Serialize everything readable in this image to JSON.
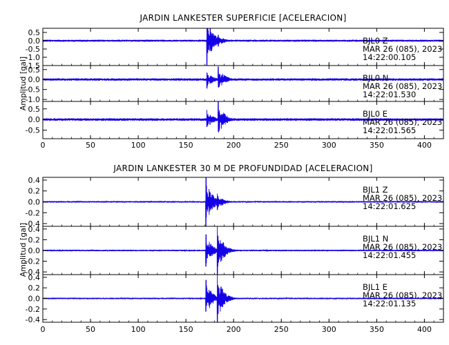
{
  "colors": {
    "trace": "#1400e6",
    "axis": "#000000",
    "background": "#ffffff"
  },
  "chart_data": [
    {
      "type": "line",
      "title": "JARDIN LANKESTER SUPERFICIE [ACELERACION]",
      "ylabel": "Amplitud [gal]",
      "xlabel": "",
      "xlim": [
        0,
        420
      ],
      "x_ticks": [
        0,
        50,
        100,
        150,
        200,
        250,
        300,
        350,
        400
      ],
      "grid": false,
      "series": [
        {
          "name": "BJL0  Z",
          "date": "MAR 26 (085), 2023",
          "time": "14:22:00.105",
          "ylim": [
            -1.5,
            0.75
          ],
          "y_ticks": [
            0.5,
            0.0,
            -0.5,
            -1.0,
            -1.5
          ],
          "y_tick_labels": [
            "0.5",
            "0.0",
            "-0.5",
            "-1.0",
            "-1.5"
          ],
          "onsets": [
            {
              "t": 172,
              "peak": 0.75,
              "trough": -1.5
            },
            {
              "t": 184,
              "peak": 0.35,
              "trough": -0.35
            }
          ],
          "noise": 0.05
        },
        {
          "name": "BJL0  N",
          "date": "MAR 26 (085), 2023",
          "time": "14:22:01.530",
          "ylim": [
            -1.1,
            0.7
          ],
          "y_ticks": [
            0.5,
            0.0,
            -0.5,
            -1.0
          ],
          "y_tick_labels": [
            "0.5",
            "0.0",
            "-0.5",
            "-1.0"
          ],
          "onsets": [
            {
              "t": 172,
              "peak": 0.35,
              "trough": -0.45
            },
            {
              "t": 184,
              "peak": 0.65,
              "trough": -0.4
            }
          ],
          "noise": 0.05
        },
        {
          "name": "BJL0  E",
          "date": "MAR 26 (085), 2023",
          "time": "14:22:01.565",
          "ylim": [
            -0.9,
            0.85
          ],
          "y_ticks": [
            0.5,
            0.0,
            -0.5
          ],
          "y_tick_labels": [
            "0.5",
            "0.0",
            "-0.5"
          ],
          "onsets": [
            {
              "t": 172,
              "peak": 0.45,
              "trough": -0.35
            },
            {
              "t": 184,
              "peak": 0.85,
              "trough": -0.6
            }
          ],
          "noise": 0.05
        }
      ]
    },
    {
      "type": "line",
      "title": "JARDIN LANKESTER 30 M DE PROFUNDIDAD [ACELERACION]",
      "ylabel": "Amplitud [gal]",
      "xlabel": "",
      "xlim": [
        0,
        420
      ],
      "x_ticks": [
        0,
        50,
        100,
        150,
        200,
        250,
        300,
        350,
        400
      ],
      "grid": false,
      "series": [
        {
          "name": "BJL1  Z",
          "date": "MAR 26 (085), 2023",
          "time": "14:22:01.625",
          "ylim": [
            -0.45,
            0.45
          ],
          "y_ticks": [
            0.4,
            0.2,
            0.0,
            -0.2,
            -0.4
          ],
          "y_tick_labels": [
            "0.4",
            "0.2",
            "0.0",
            "-0.2",
            "-0.4"
          ],
          "onsets": [
            {
              "t": 171,
              "peak": 0.45,
              "trough": -0.45
            },
            {
              "t": 183,
              "peak": 0.15,
              "trough": -0.15
            }
          ],
          "noise": 0.012
        },
        {
          "name": "BJL1  N",
          "date": "MAR 26 (085), 2023",
          "time": "14:22:01.455",
          "ylim": [
            -0.45,
            0.45
          ],
          "y_ticks": [
            0.4,
            0.2,
            0.0,
            -0.2,
            -0.4
          ],
          "y_tick_labels": [
            "0.4",
            "0.2",
            "0.0",
            "-0.2",
            "-0.4"
          ],
          "onsets": [
            {
              "t": 171,
              "peak": 0.3,
              "trough": -0.3
            },
            {
              "t": 183,
              "peak": 0.45,
              "trough": -0.45
            }
          ],
          "noise": 0.012
        },
        {
          "name": "BJL1  E",
          "date": "MAR 26 (085), 2023",
          "time": "14:22:01.135",
          "ylim": [
            -0.45,
            0.45
          ],
          "y_ticks": [
            0.4,
            0.2,
            0.0,
            -0.2,
            -0.4
          ],
          "y_tick_labels": [
            "0.4",
            "0.2",
            "0.0",
            "-0.2",
            "-0.4"
          ],
          "onsets": [
            {
              "t": 171,
              "peak": 0.35,
              "trough": -0.25
            },
            {
              "t": 183,
              "peak": 0.45,
              "trough": -0.45
            }
          ],
          "noise": 0.012
        }
      ]
    }
  ]
}
